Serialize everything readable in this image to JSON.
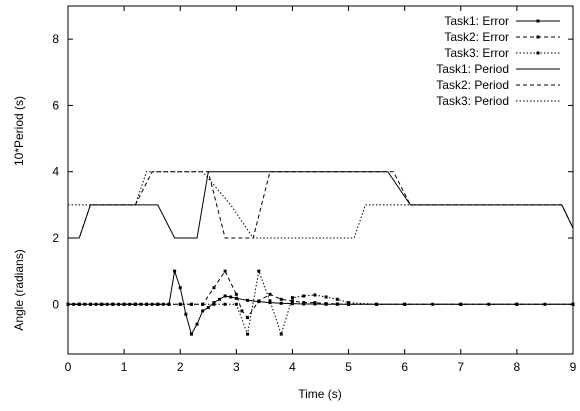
{
  "chart_data": {
    "type": "line",
    "title": "",
    "xlabel": "Time (s)",
    "ylabel_top": "10*Period (s)",
    "ylabel_bottom": "Angle (radians)",
    "xlim": [
      0,
      9
    ],
    "ylim": [
      -1.5,
      9
    ],
    "xticks": [
      0,
      1,
      2,
      3,
      4,
      5,
      6,
      7,
      8,
      9
    ],
    "yticks_top": [
      2,
      4,
      6,
      8
    ],
    "yticks_bottom": [
      0
    ],
    "grid": false,
    "legend_position": "top-right",
    "series": [
      {
        "name": "Task1: Error",
        "style": "solid-marker",
        "x": [
          0,
          0.1,
          0.2,
          0.3,
          0.4,
          0.5,
          0.6,
          0.7,
          0.8,
          0.9,
          1.0,
          1.1,
          1.2,
          1.3,
          1.4,
          1.5,
          1.6,
          1.7,
          1.8,
          1.9,
          2.0,
          2.1,
          2.2,
          2.3,
          2.4,
          2.5,
          2.6,
          2.7,
          2.8,
          2.9,
          3.0,
          3.2,
          3.4,
          3.6,
          3.8,
          4.0,
          4.2,
          4.4,
          4.6,
          4.8,
          5.0,
          5.5,
          6.0,
          6.5,
          7.0,
          7.5,
          8.0,
          8.5,
          9.0
        ],
        "y": [
          0,
          0,
          0,
          0,
          0,
          0,
          0,
          0,
          0,
          0,
          0,
          0,
          0,
          0,
          0,
          0,
          0,
          0,
          0,
          1.0,
          0.5,
          -0.3,
          -0.9,
          -0.6,
          -0.2,
          -0.1,
          0.05,
          0.15,
          0.25,
          0.22,
          0.18,
          0.12,
          0.08,
          0.05,
          0.03,
          0.02,
          0.01,
          0.01,
          0,
          0,
          0,
          0,
          0,
          0,
          0,
          0,
          0,
          0,
          0
        ]
      },
      {
        "name": "Task2: Error",
        "style": "dashed-marker",
        "x": [
          0,
          0.2,
          0.4,
          0.6,
          0.8,
          1.0,
          1.2,
          1.4,
          1.6,
          1.8,
          2.0,
          2.2,
          2.4,
          2.6,
          2.8,
          3.0,
          3.1,
          3.2,
          3.4,
          3.6,
          3.8,
          4.0,
          4.2,
          4.4,
          4.6,
          4.8,
          5.0,
          5.5,
          6.0,
          7.0,
          8.0,
          9.0
        ],
        "y": [
          0,
          0,
          0,
          0,
          0,
          0,
          0,
          0,
          0,
          0,
          0,
          0,
          0,
          0.5,
          1.0,
          0.3,
          -0.2,
          -0.4,
          0.1,
          0.3,
          0.15,
          0.1,
          0.05,
          0.05,
          0.02,
          0.01,
          0,
          0,
          0,
          0,
          0,
          0
        ]
      },
      {
        "name": "Task3: Error",
        "style": "dotted-marker",
        "x": [
          0,
          0.2,
          0.4,
          0.6,
          0.8,
          1.0,
          1.2,
          1.4,
          1.6,
          1.8,
          2.0,
          2.2,
          2.4,
          2.6,
          2.8,
          3.0,
          3.2,
          3.4,
          3.6,
          3.8,
          4.0,
          4.2,
          4.4,
          4.6,
          4.8,
          5.0,
          5.5,
          6.0,
          7.0,
          8.0,
          9.0
        ],
        "y": [
          0,
          0,
          0,
          0,
          0,
          0,
          0,
          0,
          0,
          0,
          0,
          0,
          0,
          0,
          0,
          0,
          -0.9,
          1.0,
          0.1,
          -0.9,
          0.2,
          0.25,
          0.28,
          0.22,
          0.15,
          0.05,
          0,
          0,
          0,
          0,
          0
        ]
      },
      {
        "name": "Task1: Period",
        "style": "solid",
        "x": [
          0,
          0.2,
          0.4,
          1.2,
          1.6,
          1.9,
          2.3,
          2.5,
          5.7,
          6.1,
          8.8,
          9.0
        ],
        "y": [
          2,
          2,
          3,
          3,
          3,
          2,
          2,
          4,
          4,
          3,
          3,
          2.3
        ]
      },
      {
        "name": "Task2: Period",
        "style": "dashed",
        "x": [
          0,
          0.2,
          0.4,
          1.2,
          1.5,
          2.5,
          2.8,
          3.3,
          3.6,
          3.7,
          5.8,
          6.1,
          8.8,
          9.0
        ],
        "y": [
          2,
          2,
          3,
          3,
          4,
          4,
          2,
          2,
          4,
          4,
          4,
          3,
          3,
          2.3
        ]
      },
      {
        "name": "Task3: Period",
        "style": "dotted",
        "x": [
          0,
          1.2,
          1.4,
          2.4,
          2.9,
          3.1,
          3.3,
          5.1,
          5.3,
          8.8,
          9.0
        ],
        "y": [
          3,
          3,
          4,
          4,
          3,
          2.5,
          2,
          2,
          3,
          3,
          2.3
        ]
      }
    ]
  }
}
